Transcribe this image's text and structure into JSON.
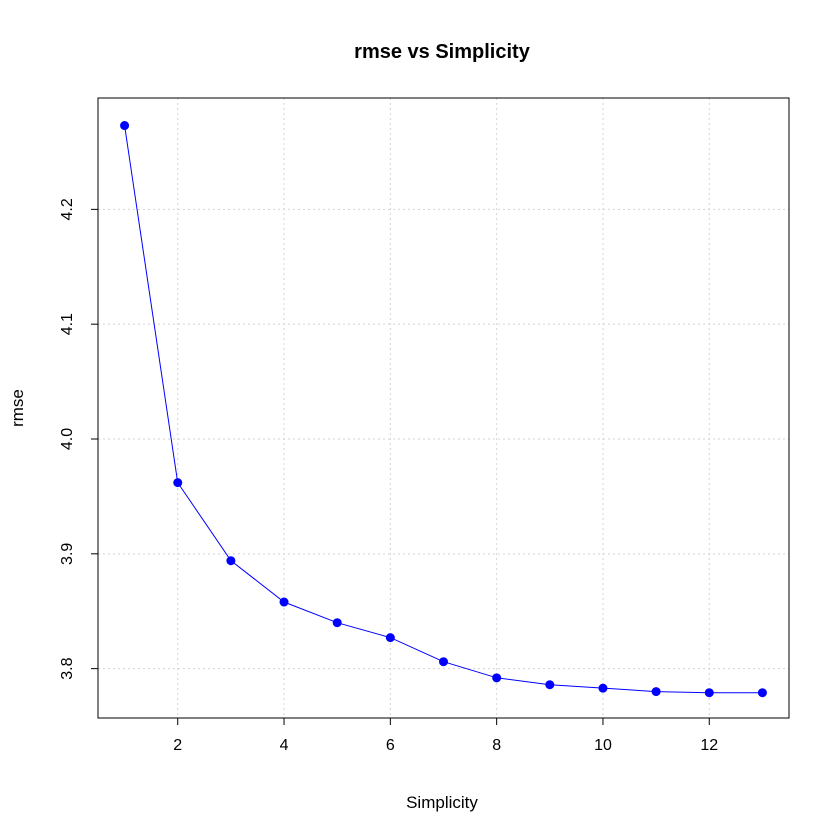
{
  "chart_data": {
    "type": "line",
    "title": "rmse vs Simplicity",
    "xlabel": "Simplicity",
    "ylabel": "rmse",
    "xlim": [
      0.5,
      13.5
    ],
    "ylim": [
      3.757,
      4.297
    ],
    "x_ticks": [
      2,
      4,
      6,
      8,
      10,
      12
    ],
    "y_ticks": [
      3.8,
      3.9,
      4.0,
      4.1,
      4.2
    ],
    "x_tick_labels": [
      "2",
      "4",
      "6",
      "8",
      "10",
      "12"
    ],
    "y_tick_labels": [
      "3.8",
      "3.9",
      "4.0",
      "4.1",
      "4.2"
    ],
    "grid": true,
    "series": [
      {
        "x": [
          1,
          2,
          3,
          4,
          5,
          6,
          7,
          8,
          9,
          10,
          11,
          12,
          13
        ],
        "values": [
          4.273,
          3.962,
          3.894,
          3.858,
          3.84,
          3.827,
          3.806,
          3.792,
          3.786,
          3.783,
          3.78,
          3.779,
          3.779
        ],
        "color": "#0000ff"
      }
    ]
  }
}
